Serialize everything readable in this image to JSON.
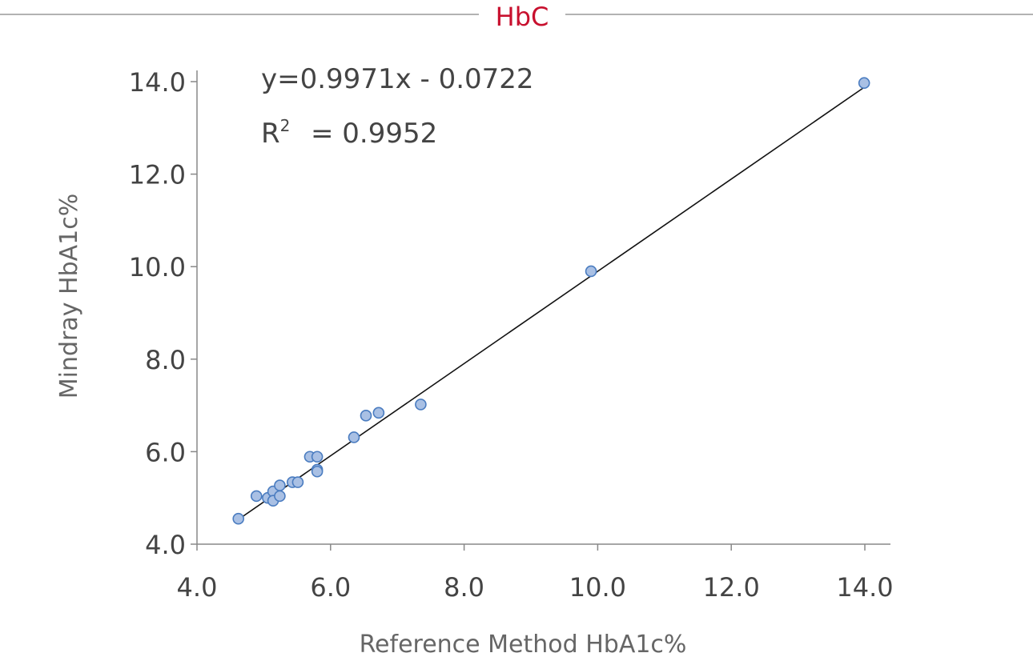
{
  "chart_data": {
    "type": "scatter",
    "title": "HbC",
    "xlabel": "Reference Method HbA1c%",
    "ylabel": "Mindray HbA1c%",
    "xlim": [
      4.0,
      14.0
    ],
    "ylim": [
      4.0,
      14.0
    ],
    "xticks": [
      "4.0",
      "6.0",
      "8.0",
      "10.0",
      "12.0",
      "14.0"
    ],
    "yticks": [
      "4.0",
      "6.0",
      "8.0",
      "10.0",
      "12.0",
      "14.0"
    ],
    "grid": false,
    "equation": "y=0.9971x - 0.0722",
    "r2_label": "R",
    "r2_sup": "2",
    "r2_value": "= 0.9952",
    "fit": {
      "slope": 0.9971,
      "intercept": -0.0722,
      "x_range": [
        4.62,
        13.99
      ]
    },
    "points": [
      [
        4.62,
        4.55
      ],
      [
        4.89,
        5.04
      ],
      [
        5.06,
        5.0
      ],
      [
        5.14,
        5.14
      ],
      [
        5.14,
        4.94
      ],
      [
        5.24,
        5.27
      ],
      [
        5.24,
        5.04
      ],
      [
        5.43,
        5.34
      ],
      [
        5.51,
        5.34
      ],
      [
        5.69,
        5.89
      ],
      [
        5.8,
        5.89
      ],
      [
        5.8,
        5.61
      ],
      [
        5.8,
        5.57
      ],
      [
        6.35,
        6.31
      ],
      [
        6.53,
        6.78
      ],
      [
        6.72,
        6.84
      ],
      [
        7.35,
        7.02
      ],
      [
        9.9,
        9.9
      ],
      [
        13.99,
        13.97
      ]
    ],
    "colors": {
      "title": "#c8102e",
      "point_fill": "#a9c0e4",
      "point_stroke": "#4a7cc0",
      "line": "#111111",
      "axis": "#888888"
    }
  }
}
